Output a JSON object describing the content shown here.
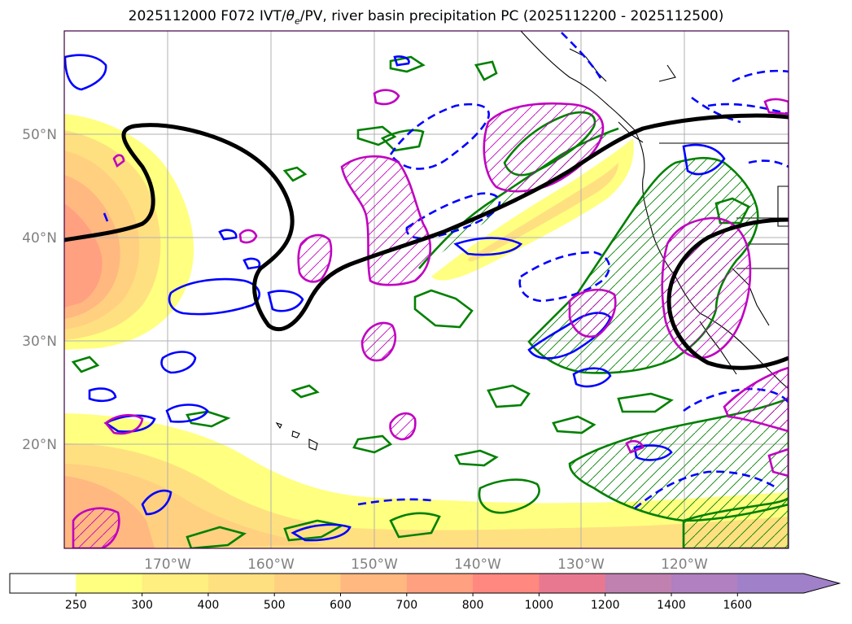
{
  "title": "2025112000 F072 IVT/θe/PV, river basin precipitation PC (2025112200 - 2025112500)",
  "title_parts": {
    "prefix": "2025112000 F072 IVT/",
    "theta": "θ",
    "theta_sub": "e",
    "suffix": "/PV, river basin precipitation PC (2025112200 - 2025112500)"
  },
  "map": {
    "lat_labels": [
      "50°N",
      "40°N",
      "30°N",
      "20°N"
    ],
    "lat_values": [
      50,
      40,
      30,
      20
    ],
    "lon_labels": [
      "170°W",
      "160°W",
      "150°W",
      "140°W",
      "130°W",
      "120°W"
    ],
    "lon_values": [
      -170,
      -160,
      -150,
      -140,
      -130,
      -120
    ],
    "extent": {
      "lon_min": -180,
      "lon_max": -110,
      "lat_min": 10,
      "lat_max": 60
    },
    "label_color": "#808080",
    "gridline_color": "#b0b0b0",
    "contour_colors": {
      "pv_black": "#000000",
      "theta_blue": "#0000ff",
      "ivt_green": "#008000",
      "precip_magenta": "#c000c0"
    }
  },
  "colorbar": {
    "ticks": [
      "250",
      "300",
      "400",
      "500",
      "600",
      "700",
      "800",
      "1000",
      "1200",
      "1400",
      "1600"
    ],
    "colors": [
      "#ffffff",
      "#ffff80",
      "#ffee80",
      "#ffe080",
      "#ffd080",
      "#ffb880",
      "#ffa080",
      "#ff8880",
      "#e87890",
      "#c080b0",
      "#b080c0",
      "#a080c8"
    ],
    "extend": "max"
  }
}
